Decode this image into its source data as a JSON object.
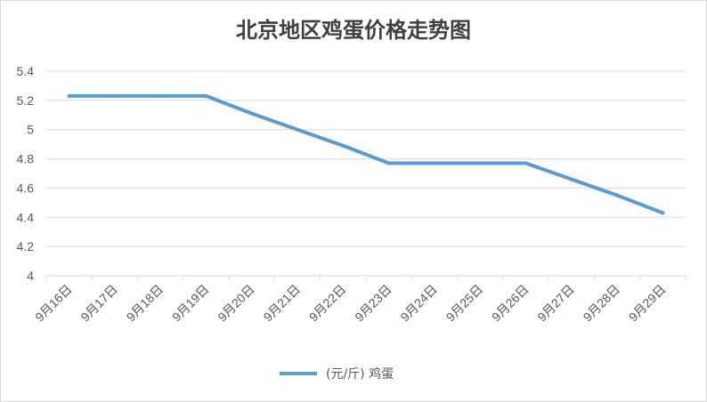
{
  "chart_data": {
    "type": "line",
    "title": "北京地区鸡蛋价格走势图",
    "xlabel": "",
    "ylabel": "",
    "categories": [
      "9月16日",
      "9月17日",
      "9月18日",
      "9月19日",
      "9月20日",
      "9月21日",
      "9月22日",
      "9月23日",
      "9月24日",
      "9月25日",
      "9月26日",
      "9月27日",
      "9月28日",
      "9月29日"
    ],
    "series": [
      {
        "name": "(元/斤) 鸡蛋",
        "color": "#5b9bd5",
        "values": [
          5.23,
          5.23,
          5.23,
          5.23,
          5.11,
          5.0,
          4.89,
          4.77,
          4.77,
          4.77,
          4.77,
          4.66,
          4.55,
          4.43
        ]
      }
    ],
    "ylim": [
      4,
      5.4
    ],
    "yticks": [
      4,
      4.2,
      4.4,
      4.6,
      4.8,
      5,
      5.2,
      5.4
    ],
    "grid": true,
    "legend_position": "bottom"
  }
}
